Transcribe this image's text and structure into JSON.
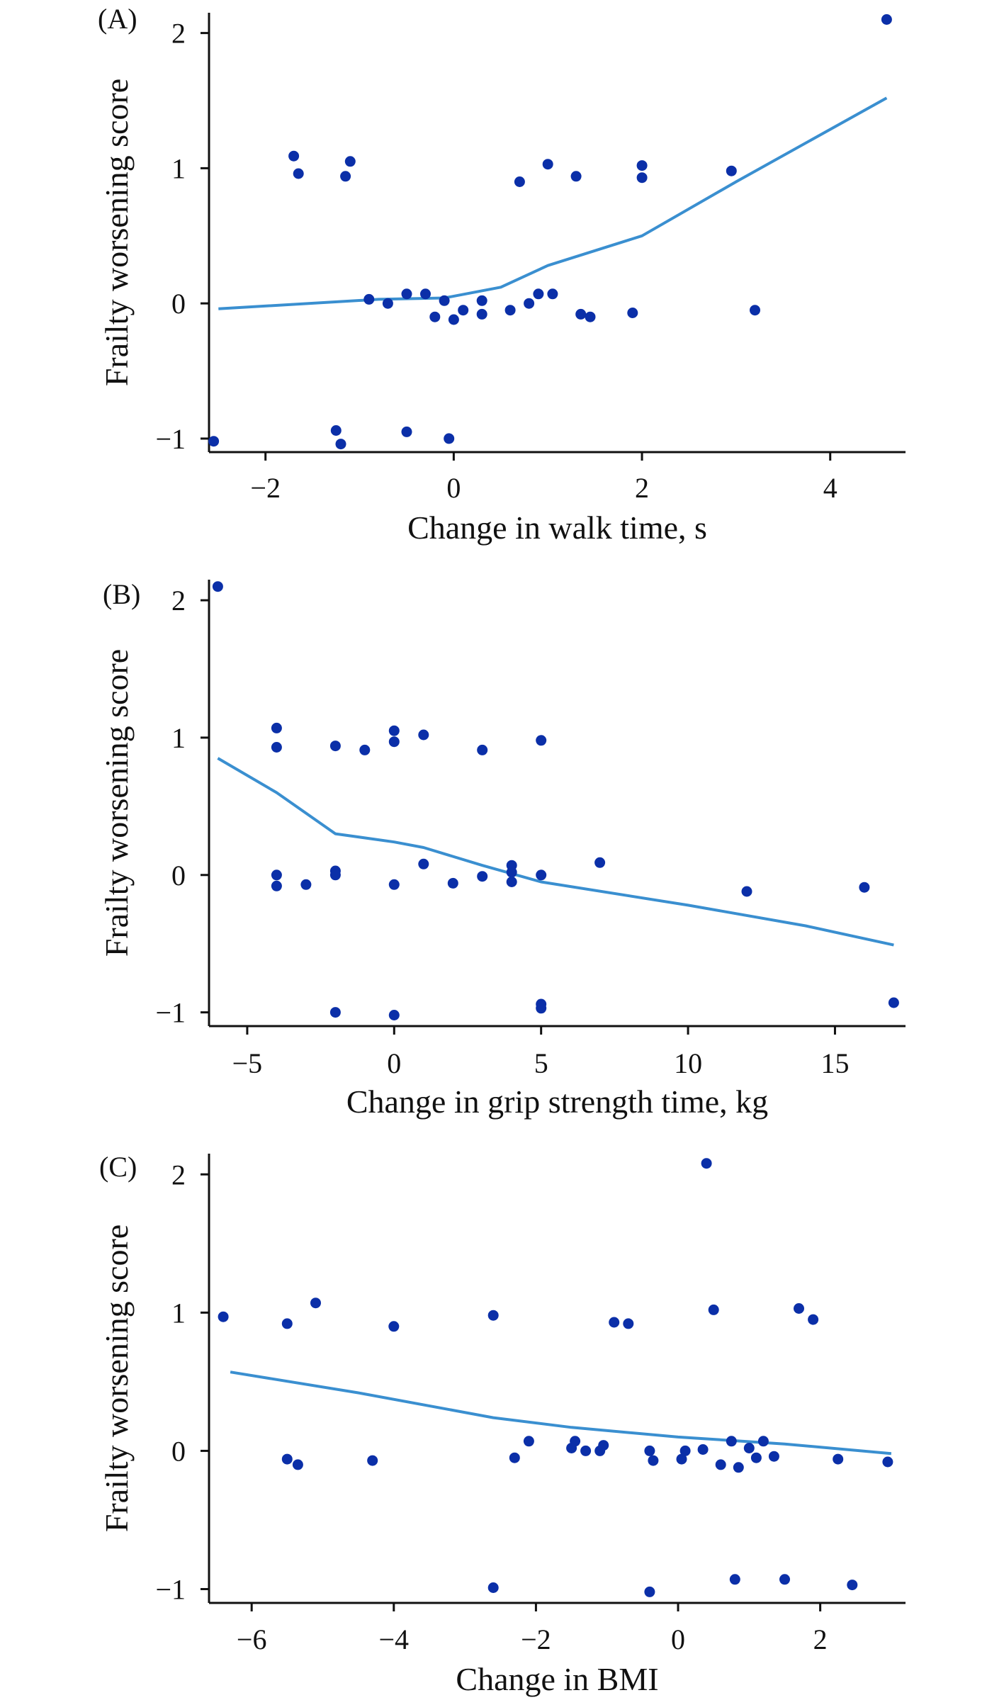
{
  "colors": {
    "point": "#0b2fa8",
    "trend": "#3a8fd0",
    "axis": "#111111"
  },
  "chart_data": [
    {
      "type": "scatter",
      "panel_label": "(A)",
      "xlabel": "Change in walk time, s",
      "ylabel": "Frailty worsening score",
      "xlim": [
        -2.6,
        4.8
      ],
      "ylim": [
        -1.1,
        2.15
      ],
      "xticks": [
        -2,
        0,
        2,
        4
      ],
      "yticks": [
        -1,
        0,
        1,
        2
      ],
      "xtick_labels": [
        "−2",
        "0",
        "2",
        "4"
      ],
      "ytick_labels": [
        "−1",
        "0",
        "1",
        "2"
      ],
      "points": [
        {
          "x": 4.6,
          "y": 2.1
        },
        {
          "x": -1.7,
          "y": 1.09
        },
        {
          "x": -1.65,
          "y": 0.96
        },
        {
          "x": -1.1,
          "y": 1.05
        },
        {
          "x": -1.15,
          "y": 0.94
        },
        {
          "x": 0.7,
          "y": 0.9
        },
        {
          "x": 1.0,
          "y": 1.03
        },
        {
          "x": 1.3,
          "y": 0.94
        },
        {
          "x": 2.0,
          "y": 1.02
        },
        {
          "x": 2.0,
          "y": 0.93
        },
        {
          "x": 2.95,
          "y": 0.98
        },
        {
          "x": -0.9,
          "y": 0.03
        },
        {
          "x": -0.7,
          "y": 0.0
        },
        {
          "x": -0.5,
          "y": 0.07
        },
        {
          "x": -0.3,
          "y": 0.07
        },
        {
          "x": -0.2,
          "y": -0.1
        },
        {
          "x": -0.1,
          "y": 0.02
        },
        {
          "x": 0.0,
          "y": -0.12
        },
        {
          "x": 0.1,
          "y": -0.05
        },
        {
          "x": 0.3,
          "y": 0.02
        },
        {
          "x": 0.3,
          "y": -0.08
        },
        {
          "x": 0.6,
          "y": -0.05
        },
        {
          "x": 0.8,
          "y": 0.0
        },
        {
          "x": 0.9,
          "y": 0.07
        },
        {
          "x": 1.05,
          "y": 0.07
        },
        {
          "x": 1.35,
          "y": -0.08
        },
        {
          "x": 1.45,
          "y": -0.1
        },
        {
          "x": 1.9,
          "y": -0.07
        },
        {
          "x": 3.2,
          "y": -0.05
        },
        {
          "x": -2.55,
          "y": -1.02
        },
        {
          "x": -1.25,
          "y": -0.94
        },
        {
          "x": -1.2,
          "y": -1.04
        },
        {
          "x": -0.5,
          "y": -0.95
        },
        {
          "x": -0.05,
          "y": -1.0
        }
      ],
      "trend": [
        {
          "x": -2.5,
          "y": -0.04
        },
        {
          "x": -0.8,
          "y": 0.03
        },
        {
          "x": -0.1,
          "y": 0.04
        },
        {
          "x": 0.5,
          "y": 0.12
        },
        {
          "x": 1.0,
          "y": 0.28
        },
        {
          "x": 2.0,
          "y": 0.5
        },
        {
          "x": 3.0,
          "y": 0.9
        },
        {
          "x": 4.6,
          "y": 1.52
        }
      ]
    },
    {
      "type": "scatter",
      "panel_label": "(B)",
      "xlabel": "Change in grip strength time, kg",
      "ylabel": "Frailty worsening score",
      "xlim": [
        -6.3,
        17.4
      ],
      "ylim": [
        -1.1,
        2.15
      ],
      "xticks": [
        -5,
        0,
        5,
        10,
        15
      ],
      "yticks": [
        -1,
        0,
        1,
        2
      ],
      "xtick_labels": [
        "−5",
        "0",
        "5",
        "10",
        "15"
      ],
      "ytick_labels": [
        "−1",
        "0",
        "1",
        "2"
      ],
      "points": [
        {
          "x": -6.0,
          "y": 2.1
        },
        {
          "x": -4.0,
          "y": 1.07
        },
        {
          "x": -4.0,
          "y": 0.93
        },
        {
          "x": -2.0,
          "y": 0.94
        },
        {
          "x": -1.0,
          "y": 0.91
        },
        {
          "x": 0.0,
          "y": 1.05
        },
        {
          "x": 0.0,
          "y": 0.97
        },
        {
          "x": 1.0,
          "y": 1.02
        },
        {
          "x": 3.0,
          "y": 0.91
        },
        {
          "x": 5.0,
          "y": 0.98
        },
        {
          "x": -4.0,
          "y": 0.0
        },
        {
          "x": -4.0,
          "y": -0.08
        },
        {
          "x": -3.0,
          "y": -0.07
        },
        {
          "x": -2.0,
          "y": 0.03
        },
        {
          "x": -2.0,
          "y": 0.0
        },
        {
          "x": 0.0,
          "y": -0.07
        },
        {
          "x": 1.0,
          "y": 0.08
        },
        {
          "x": 2.0,
          "y": -0.06
        },
        {
          "x": 3.0,
          "y": -0.01
        },
        {
          "x": 4.0,
          "y": 0.07
        },
        {
          "x": 4.0,
          "y": 0.02
        },
        {
          "x": 4.0,
          "y": -0.05
        },
        {
          "x": 5.0,
          "y": 0.0
        },
        {
          "x": 7.0,
          "y": 0.09
        },
        {
          "x": 12.0,
          "y": -0.12
        },
        {
          "x": 16.0,
          "y": -0.09
        },
        {
          "x": -2.0,
          "y": -1.0
        },
        {
          "x": 0.0,
          "y": -1.02
        },
        {
          "x": 5.0,
          "y": -0.94
        },
        {
          "x": 5.0,
          "y": -0.97
        },
        {
          "x": 17.0,
          "y": -0.93
        }
      ],
      "trend": [
        {
          "x": -6.0,
          "y": 0.85
        },
        {
          "x": -4.0,
          "y": 0.6
        },
        {
          "x": -2.0,
          "y": 0.3
        },
        {
          "x": 0.0,
          "y": 0.24
        },
        {
          "x": 1.0,
          "y": 0.2
        },
        {
          "x": 3.0,
          "y": 0.07
        },
        {
          "x": 5.0,
          "y": -0.05
        },
        {
          "x": 10.0,
          "y": -0.22
        },
        {
          "x": 14.0,
          "y": -0.37
        },
        {
          "x": 17.0,
          "y": -0.51
        }
      ]
    },
    {
      "type": "scatter",
      "panel_label": "(C)",
      "xlabel": "Change in BMI",
      "ylabel": "Frailty worsening score",
      "xlim": [
        -6.6,
        3.2
      ],
      "ylim": [
        -1.1,
        2.15
      ],
      "xticks": [
        -6,
        -4,
        -2,
        0,
        2
      ],
      "yticks": [
        -1,
        0,
        1,
        2
      ],
      "xtick_labels": [
        "−6",
        "−4",
        "−2",
        "0",
        "2"
      ],
      "ytick_labels": [
        "−1",
        "0",
        "1",
        "2"
      ],
      "points": [
        {
          "x": 0.4,
          "y": 2.08
        },
        {
          "x": -6.4,
          "y": 0.97
        },
        {
          "x": -5.5,
          "y": 0.92
        },
        {
          "x": -5.1,
          "y": 1.07
        },
        {
          "x": -4.0,
          "y": 0.9
        },
        {
          "x": -2.6,
          "y": 0.98
        },
        {
          "x": -0.9,
          "y": 0.93
        },
        {
          "x": -0.7,
          "y": 0.92
        },
        {
          "x": 0.5,
          "y": 1.02
        },
        {
          "x": 1.7,
          "y": 1.03
        },
        {
          "x": 1.9,
          "y": 0.95
        },
        {
          "x": -5.5,
          "y": -0.06
        },
        {
          "x": -5.35,
          "y": -0.1
        },
        {
          "x": -4.3,
          "y": -0.07
        },
        {
          "x": -2.3,
          "y": -0.05
        },
        {
          "x": -2.1,
          "y": 0.07
        },
        {
          "x": -1.5,
          "y": 0.02
        },
        {
          "x": -1.45,
          "y": 0.07
        },
        {
          "x": -1.3,
          "y": 0.0
        },
        {
          "x": -1.1,
          "y": 0.0
        },
        {
          "x": -1.05,
          "y": 0.04
        },
        {
          "x": -0.4,
          "y": 0.0
        },
        {
          "x": -0.35,
          "y": -0.07
        },
        {
          "x": 0.05,
          "y": -0.06
        },
        {
          "x": 0.1,
          "y": 0.0
        },
        {
          "x": 0.35,
          "y": 0.01
        },
        {
          "x": 0.6,
          "y": -0.1
        },
        {
          "x": 0.75,
          "y": 0.07
        },
        {
          "x": 0.85,
          "y": -0.12
        },
        {
          "x": 1.0,
          "y": 0.02
        },
        {
          "x": 1.1,
          "y": -0.05
        },
        {
          "x": 1.2,
          "y": 0.07
        },
        {
          "x": 1.35,
          "y": -0.04
        },
        {
          "x": 2.25,
          "y": -0.06
        },
        {
          "x": 2.95,
          "y": -0.08
        },
        {
          "x": -2.6,
          "y": -0.99
        },
        {
          "x": -0.4,
          "y": -1.02
        },
        {
          "x": 0.8,
          "y": -0.93
        },
        {
          "x": 1.5,
          "y": -0.93
        },
        {
          "x": 2.45,
          "y": -0.97
        }
      ],
      "trend": [
        {
          "x": -6.3,
          "y": 0.57
        },
        {
          "x": -4.5,
          "y": 0.42
        },
        {
          "x": -2.6,
          "y": 0.24
        },
        {
          "x": -1.5,
          "y": 0.17
        },
        {
          "x": 0.0,
          "y": 0.1
        },
        {
          "x": 1.5,
          "y": 0.05
        },
        {
          "x": 3.0,
          "y": -0.02
        }
      ]
    }
  ]
}
